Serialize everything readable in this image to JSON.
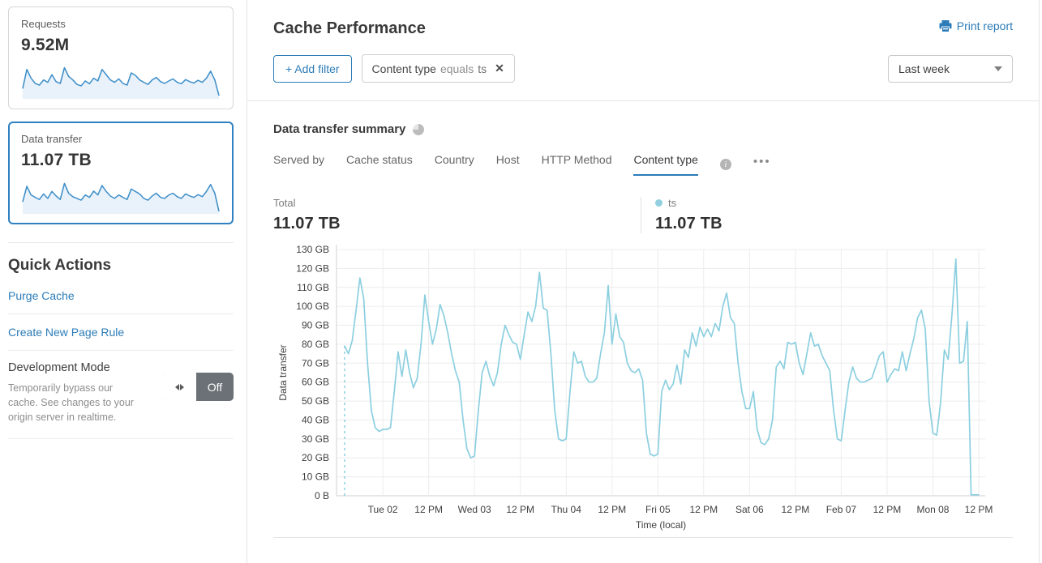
{
  "accent_color": "#2c7cb8",
  "sidebar": {
    "requests_card": {
      "label": "Requests",
      "value": "9.52M",
      "color": "#3d8ec9",
      "fill": "#e9f2fa",
      "sparkline": [
        30,
        85,
        60,
        45,
        40,
        55,
        48,
        70,
        50,
        45,
        90,
        65,
        55,
        42,
        38,
        52,
        44,
        60,
        52,
        85,
        70,
        55,
        48,
        58,
        45,
        40,
        75,
        68,
        55,
        48,
        42,
        55,
        62,
        50,
        45,
        52,
        58,
        48,
        44,
        56,
        50,
        46,
        54,
        48,
        60,
        80,
        55,
        10
      ]
    },
    "data_transfer_card": {
      "label": "Data transfer",
      "value": "11.07 TB",
      "color": "#3d8ec9",
      "fill": "#e9f2fa",
      "sparkline": [
        35,
        80,
        55,
        48,
        42,
        58,
        45,
        65,
        52,
        42,
        88,
        60,
        50,
        45,
        40,
        55,
        48,
        66,
        55,
        82,
        65,
        52,
        45,
        55,
        48,
        42,
        72,
        65,
        58,
        45,
        40,
        52,
        60,
        48,
        45,
        55,
        60,
        50,
        45,
        58,
        52,
        48,
        56,
        50,
        65,
        85,
        60,
        8
      ]
    },
    "quick_actions": {
      "title": "Quick Actions",
      "links": [
        "Purge Cache",
        "Create New Page Rule"
      ],
      "development_mode": {
        "title": "Development Mode",
        "description": "Temporarily bypass our cache. See changes to your origin server in realtime.",
        "toggle_state": "Off"
      }
    }
  },
  "header": {
    "title": "Cache Performance",
    "print_label": "Print report",
    "time_range": "Last week"
  },
  "filters": {
    "add_label": "+ Add filter",
    "chips": [
      {
        "field": "Content type",
        "operator": "equals",
        "value": "ts"
      }
    ]
  },
  "summary": {
    "title": "Data transfer summary",
    "tabs": [
      "Served by",
      "Cache status",
      "Country",
      "Host",
      "HTTP Method",
      "Content type"
    ],
    "active_tab": "Content type",
    "more_label": "•••",
    "total_label": "Total",
    "total_value": "11.07 TB",
    "legend": [
      {
        "name": "ts",
        "value": "11.07 TB",
        "color": "#92d0e0"
      }
    ]
  },
  "chart_data": {
    "type": "line",
    "title": "Data transfer summary",
    "xlabel": "Time (local)",
    "ylabel": "Data transfer",
    "y_unit": "GB",
    "ylim": [
      0,
      130
    ],
    "grid": true,
    "legend_position": "top-right",
    "start_dashed": true,
    "y_ticks": [
      "0 B",
      "10 GB",
      "20 GB",
      "30 GB",
      "40 GB",
      "50 GB",
      "60 GB",
      "70 GB",
      "80 GB",
      "90 GB",
      "100 GB",
      "110 GB",
      "120 GB",
      "130 GB"
    ],
    "x_ticks": [
      "Tue 02",
      "12 PM",
      "Wed 03",
      "12 PM",
      "Thu 04",
      "12 PM",
      "Fri 05",
      "12 PM",
      "Sat 06",
      "12 PM",
      "Feb 07",
      "12 PM",
      "Mon 08",
      "12 PM"
    ],
    "x_tick_idx": [
      10,
      22,
      34,
      46,
      58,
      70,
      82,
      94,
      106,
      118,
      130,
      142,
      154,
      166
    ],
    "series": [
      {
        "name": "ts",
        "color": "#8ccfe0",
        "values": [
          79,
          75,
          82,
          98,
          115,
          104,
          70,
          45,
          36,
          34,
          35,
          35,
          36,
          55,
          76,
          63,
          77,
          65,
          57,
          62,
          80,
          106,
          92,
          80,
          88,
          101,
          95,
          86,
          75,
          66,
          60,
          40,
          25,
          20,
          21,
          45,
          65,
          71,
          63,
          58,
          65,
          80,
          90,
          85,
          81,
          80,
          72,
          85,
          97,
          92,
          100,
          118,
          99,
          98,
          75,
          45,
          30,
          29,
          30,
          55,
          76,
          70,
          71,
          63,
          60,
          60,
          62,
          75,
          86,
          111,
          80,
          96,
          84,
          81,
          70,
          66,
          65,
          67,
          61,
          33,
          22,
          21,
          22,
          55,
          61,
          56,
          59,
          69,
          59,
          77,
          73,
          86,
          79,
          89,
          84,
          88,
          84,
          91,
          87,
          100,
          107,
          94,
          91,
          70,
          55,
          46,
          46,
          55,
          35,
          28,
          27,
          30,
          40,
          68,
          71,
          67,
          81,
          80,
          81,
          70,
          64,
          75,
          86,
          79,
          80,
          74,
          70,
          66,
          45,
          30,
          29,
          45,
          60,
          68,
          62,
          60,
          60,
          61,
          62,
          68,
          74,
          76,
          60,
          64,
          67,
          66,
          76,
          66,
          75,
          83,
          94,
          98,
          88,
          50,
          33,
          32,
          49,
          77,
          72,
          96,
          125,
          70,
          71,
          92,
          0.5,
          0.5,
          0.5
        ]
      }
    ]
  }
}
